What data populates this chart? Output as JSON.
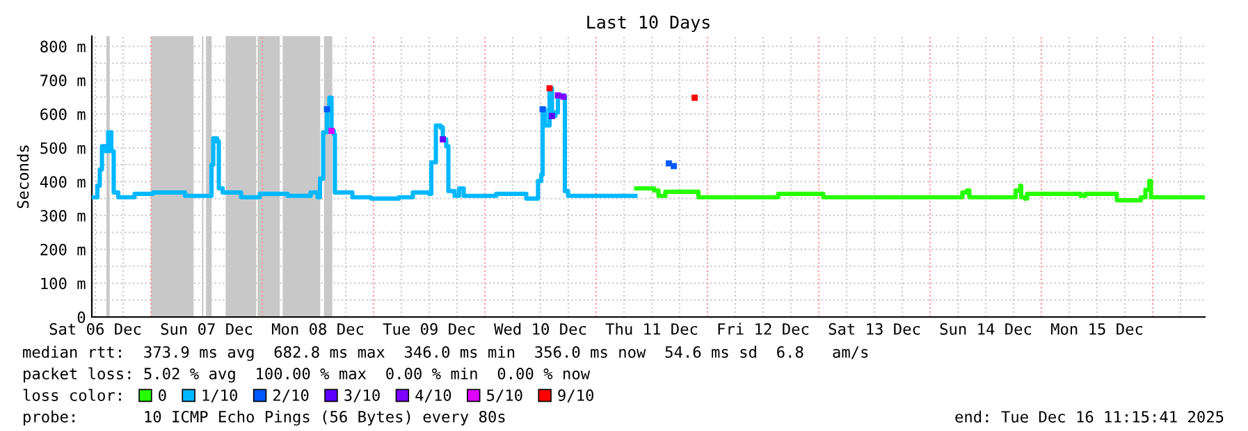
{
  "chart_data": {
    "type": "step",
    "title": "Last 10 Days",
    "ylabel": "Seconds",
    "xlim": [
      "2025-12-06T11:15",
      "2025-12-16T11:15"
    ],
    "ylim": [
      0,
      830
    ],
    "xticks": [
      {
        "value": "2025-12-06T12:00",
        "label": "Sat 06 Dec"
      },
      {
        "value": "2025-12-06T18:00",
        "label": null
      },
      {
        "value": "2025-12-07T12:00",
        "label": "Sun 07 Dec"
      },
      {
        "value": "2025-12-08T12:00",
        "label": "Mon 08 Dec"
      },
      {
        "value": "2025-12-08T18:00",
        "label": null
      },
      {
        "value": "2025-12-09T06:00",
        "label": null
      },
      {
        "value": "2025-12-09T12:00",
        "label": "Tue 09 Dec"
      },
      {
        "value": "2025-12-09T18:00",
        "label": null
      },
      {
        "value": "2025-12-10T06:00",
        "label": null
      },
      {
        "value": "2025-12-10T12:00",
        "label": "Wed 10 Dec"
      },
      {
        "value": "2025-12-10T18:00",
        "label": null
      },
      {
        "value": "2025-12-11T06:00",
        "label": null
      },
      {
        "value": "2025-12-11T12:00",
        "label": "Thu 11 Dec"
      },
      {
        "value": "2025-12-11T18:00",
        "label": null
      },
      {
        "value": "2025-12-12T06:00",
        "label": null
      },
      {
        "value": "2025-12-12T12:00",
        "label": "Fri 12 Dec"
      },
      {
        "value": "2025-12-12T18:00",
        "label": null
      },
      {
        "value": "2025-12-13T06:00",
        "label": null
      },
      {
        "value": "2025-12-13T12:00",
        "label": "Sat 13 Dec"
      },
      {
        "value": "2025-12-13T18:00",
        "label": null
      },
      {
        "value": "2025-12-14T06:00",
        "label": null
      },
      {
        "value": "2025-12-14T12:00",
        "label": "Sun 14 Dec"
      },
      {
        "value": "2025-12-14T18:00",
        "label": null
      },
      {
        "value": "2025-12-15T06:00",
        "label": null
      },
      {
        "value": "2025-12-15T12:00",
        "label": "Mon 15 Dec"
      },
      {
        "value": "2025-12-15T18:00",
        "label": null
      },
      {
        "value": "2025-12-16T06:00",
        "label": null
      }
    ],
    "yticks": [
      0,
      {
        "value": 50,
        "label": null
      },
      {
        "value": 100,
        "label": "100 m"
      },
      {
        "value": 150,
        "label": null
      },
      {
        "value": 200,
        "label": "200 m"
      },
      {
        "value": 250,
        "label": null
      },
      {
        "value": 300,
        "label": "300 m"
      },
      {
        "value": 350,
        "label": null
      },
      {
        "value": 400,
        "label": "400 m"
      },
      {
        "value": 450,
        "label": null
      },
      {
        "value": 500,
        "label": "500 m"
      },
      {
        "value": 550,
        "label": null
      },
      {
        "value": 600,
        "label": "600 m"
      },
      {
        "value": 650,
        "label": null
      },
      {
        "value": 700,
        "label": "700 m"
      },
      {
        "value": 750,
        "label": null
      },
      {
        "value": 800,
        "label": "800 m"
      }
    ],
    "grid": true,
    "legend": "bottom",
    "legend_title": "loss color:",
    "bands": [
      {
        "axis": "x",
        "from": "2025-12-06T14:24",
        "to": "2025-12-06T15:06",
        "color": "#c8c8c8"
      },
      {
        "axis": "x",
        "from": "2025-12-07T00:00",
        "to": "2025-12-07T09:12",
        "color": "#c8c8c8"
      },
      {
        "axis": "x",
        "from": "2025-12-07T11:00",
        "to": "2025-12-07T11:18",
        "color": "#c8c8c8"
      },
      {
        "axis": "x",
        "from": "2025-12-07T11:54",
        "to": "2025-12-07T13:06",
        "color": "#c8c8c8"
      },
      {
        "axis": "x",
        "from": "2025-12-07T16:06",
        "to": "2025-12-07T22:42",
        "color": "#c8c8c8"
      },
      {
        "axis": "x",
        "from": "2025-12-07T23:00",
        "to": "2025-12-08T03:48",
        "color": "#c8c8c8"
      },
      {
        "axis": "x",
        "from": "2025-12-08T04:24",
        "to": "2025-12-08T12:30",
        "color": "#c8c8c8"
      },
      {
        "axis": "x",
        "from": "2025-12-08T13:18",
        "to": "2025-12-08T15:06",
        "color": "#c8c8c8"
      }
    ],
    "ref_lines": [
      {
        "axis": "x",
        "value": "2025-12-07T00:00",
        "color": "#ff9999",
        "line_style": "dotted"
      },
      {
        "axis": "x",
        "value": "2025-12-08T00:00",
        "color": "#ff9999",
        "line_style": "dotted"
      },
      {
        "axis": "x",
        "value": "2025-12-09T00:00",
        "color": "#ff9999",
        "line_style": "dotted"
      },
      {
        "axis": "x",
        "value": "2025-12-10T00:00",
        "color": "#ff9999",
        "line_style": "dotted"
      },
      {
        "axis": "x",
        "value": "2025-12-11T00:00",
        "color": "#ff9999",
        "line_style": "dotted"
      },
      {
        "axis": "x",
        "value": "2025-12-12T00:00",
        "color": "#ff9999",
        "line_style": "dotted"
      },
      {
        "axis": "x",
        "value": "2025-12-13T00:00",
        "color": "#ff9999",
        "line_style": "dotted"
      },
      {
        "axis": "x",
        "value": "2025-12-14T00:00",
        "color": "#ff9999",
        "line_style": "dotted"
      },
      {
        "axis": "x",
        "value": "2025-12-15T00:00",
        "color": "#ff9999",
        "line_style": "dotted"
      },
      {
        "axis": "x",
        "value": "2025-12-16T00:00",
        "color": "#ff9999",
        "line_style": "dotted"
      }
    ],
    "series": [
      {
        "name": "0",
        "color": "#26ff00",
        "x": [
          "2025-12-11T08:38",
          "2025-12-11T12:27",
          "2025-12-11T13:26",
          "2025-12-11T14:56",
          "2025-12-11T19:57",
          "2025-12-11T22:03",
          "2025-12-11T22:26",
          "2025-12-12T09:27",
          "2025-12-12T14:28",
          "2025-12-12T15:14",
          "2025-12-12T23:56",
          "2025-12-13T00:58",
          "2025-12-14T06:27",
          "2025-12-14T06:58",
          "2025-12-14T07:57",
          "2025-12-14T08:28",
          "2025-12-14T16:57",
          "2025-12-14T18:27",
          "2025-12-14T19:26",
          "2025-12-14T19:39",
          "2025-12-14T20:28",
          "2025-12-14T20:56",
          "2025-12-15T03:27",
          "2025-12-15T08:28",
          "2025-12-15T09:27",
          "2025-12-15T15:27",
          "2025-12-15T16:16",
          "2025-12-15T19:26",
          "2025-12-15T21:27",
          "2025-12-15T22:26",
          "2025-12-15T23:15",
          "2025-12-15T23:38",
          "2025-12-16T10:57"
        ],
        "values": [
          380,
          374,
          358,
          370,
          370,
          354,
          354,
          354,
          354,
          364,
          364,
          354,
          354,
          368,
          374,
          354,
          354,
          374,
          388,
          354,
          350,
          364,
          364,
          358,
          364,
          364,
          345,
          345,
          354,
          376,
          402,
          354,
          354
        ]
      },
      {
        "name": "1/10",
        "color": "#00b8ff",
        "x": [
          "2025-12-06T11:28",
          "2025-12-06T12:27",
          "2025-12-06T12:58",
          "2025-12-06T13:26",
          "2025-12-06T14:10",
          "2025-12-06T14:46",
          "2025-12-06T15:27",
          "2025-12-06T15:58",
          "2025-12-06T16:57",
          "2025-12-06T20:28",
          "2025-12-07T00:27",
          "2025-12-07T07:21",
          "2025-12-07T12:27",
          "2025-12-07T13:03",
          "2025-12-07T13:26",
          "2025-12-07T14:15",
          "2025-12-07T14:38",
          "2025-12-07T15:27",
          "2025-12-07T19:26",
          "2025-12-07T23:28",
          "2025-12-08T05:28",
          "2025-12-08T10:26",
          "2025-12-08T11:56",
          "2025-12-08T12:27",
          "2025-12-08T13:08",
          "2025-12-08T13:57",
          "2025-12-08T14:28",
          "2025-12-08T14:56",
          "2025-12-08T15:27",
          "2025-12-08T15:40",
          "2025-12-08T19:26",
          "2025-12-08T23:28",
          "2025-12-09T05:28",
          "2025-12-09T06:27",
          "2025-12-09T08:28",
          "2025-12-09T11:56",
          "2025-12-09T12:27",
          "2025-12-09T13:26",
          "2025-12-09T14:28",
          "2025-12-09T14:56",
          "2025-12-09T15:40",
          "2025-12-09T16:08",
          "2025-12-09T17:28",
          "2025-12-09T18:27",
          "2025-12-09T19:26",
          "2025-12-10T02:28",
          "2025-12-10T08:56",
          "2025-12-10T10:57",
          "2025-12-10T11:28",
          "2025-12-10T12:09",
          "2025-12-10T12:27",
          "2025-12-10T12:58",
          "2025-12-10T13:57",
          "2025-12-10T14:28",
          "2025-12-10T15:14",
          "2025-12-10T15:45",
          "2025-12-10T16:57",
          "2025-12-10T17:15",
          "2025-12-10T17:56",
          "2025-12-11T08:28"
        ],
        "values": [
          354,
          388,
          436,
          505,
          490,
          546,
          490,
          368,
          354,
          364,
          368,
          358,
          358,
          450,
          528,
          519,
          380,
          368,
          354,
          364,
          358,
          368,
          354,
          409,
          546,
          614,
          648,
          550,
          539,
          368,
          354,
          350,
          354,
          354,
          368,
          364,
          457,
          566,
          560,
          525,
          505,
          372,
          358,
          380,
          358,
          364,
          350,
          350,
          402,
          420,
          614,
          566,
          676,
          594,
          605,
          655,
          651,
          372,
          358,
          358
        ]
      },
      {
        "name": "2/10",
        "color": "#0059ff",
        "type": "scatter",
        "marker": "square",
        "x": [
          "2025-12-08T13:57",
          "2025-12-10T12:27",
          "2025-12-11T15:40",
          "2025-12-11T16:44"
        ],
        "values": [
          614,
          614,
          454,
          446
        ]
      },
      {
        "name": "3/10",
        "color": "#5e00ff",
        "type": "scatter",
        "marker": "square",
        "x": [
          "2025-12-09T14:56",
          "2025-12-10T14:28"
        ],
        "values": [
          525,
          594
        ]
      },
      {
        "name": "4/10",
        "color": "#7e00ff",
        "type": "scatter",
        "marker": "square",
        "x": [
          "2025-12-10T15:45",
          "2025-12-10T16:57"
        ],
        "values": [
          655,
          651
        ]
      },
      {
        "name": "5/10",
        "color": "#dd00ff",
        "type": "scatter",
        "marker": "square",
        "x": [
          "2025-12-08T14:56"
        ],
        "values": [
          550
        ]
      },
      {
        "name": "9/10",
        "color": "#ff0000",
        "type": "scatter",
        "marker": "square",
        "x": [
          "2025-12-10T13:57",
          "2025-12-11T21:14"
        ],
        "values": [
          676,
          648
        ]
      }
    ],
    "annotations": [
      "median rtt:  373.9 ms avg  682.8 ms max  346.0 ms min  356.0 ms now  54.6 ms sd  6.8   am/s",
      "packet loss: 5.02 % avg  100.00 % max  0.00 % min  0.00 % now",
      "probe:       10 ICMP Echo Pings (56 Bytes) every 80s",
      "end: Tue Dec 16 11:15:41 2025"
    ]
  }
}
